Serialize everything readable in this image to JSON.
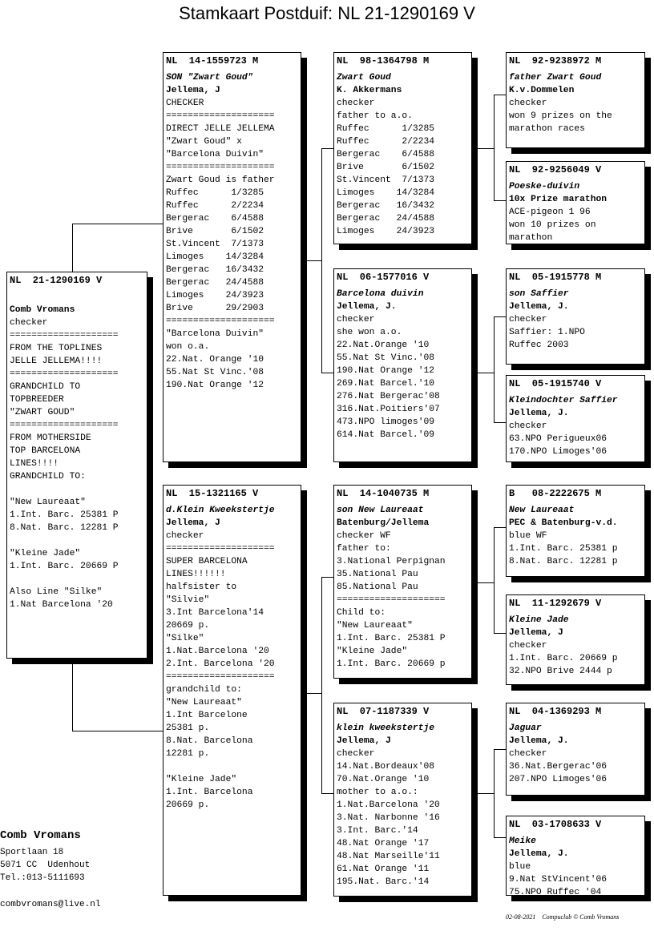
{
  "title": "Stamkaart Postduif: NL  21-1290169 V",
  "boxes": [
    {
      "key": "subject",
      "id": "NL  21-1290169 V",
      "name": "",
      "owner": "Comb Vromans",
      "lines": [
        "checker",
        "====================",
        "FROM THE TOPLINES",
        "JELLE JELLEMA!!!!",
        "====================",
        "GRANDCHILD TO",
        "TOPBREEDER",
        "\"ZWART GOUD\"",
        "====================",
        "FROM MOTHERSIDE",
        "TOP BARCELONA",
        "LINES!!!!",
        "GRANDCHILD TO:",
        "",
        "\"New Laureaat\"",
        "1.Int. Barc. 25381 P",
        "8.Nat. Barc. 12281 P",
        "",
        "\"Kleine Jade\"",
        "1.Int. Barc. 20669 P",
        "",
        "Also Line \"Silke\"",
        "1.Nat Barcelona '20"
      ]
    },
    {
      "key": "sire",
      "id": "NL  14-1559723 M",
      "name": "SON \"Zwart Goud\"",
      "owner": "Jellema, J",
      "lines": [
        "CHECKER",
        "====================",
        "DIRECT JELLE JELLEMA",
        "\"Zwart Goud\" x",
        "\"Barcelona Duivin\"",
        "====================",
        "Zwart Goud is father",
        "Ruffec      1/3285",
        "Ruffec      2/2234",
        "Bergerac    6/4588",
        "Brive       6/1502",
        "St.Vincent  7/1373",
        "Limoges    14/3284",
        "Bergerac   16/3432",
        "Bergerac   24/4588",
        "Limoges    24/3923",
        "Brive      29/2903",
        "====================",
        "\"Barcelona Duivin\"",
        "won o.a.",
        "22.Nat. Orange '10",
        "55.Nat St Vinc.'08",
        "190.Nat Orange '12"
      ]
    },
    {
      "key": "dam",
      "id": "NL  15-1321165 V",
      "name": "d.Klein Kweekstertje",
      "owner": "Jellema, J",
      "lines": [
        "checker",
        "====================",
        "SUPER BARCELONA",
        "LINES!!!!!!",
        "halfsister to",
        "\"Silvie\"",
        "3.Int Barcelona'14",
        "20669 p.",
        "\"Silke\"",
        "1.Nat.Barcelona '20",
        "2.Int. Barcelona '20",
        "====================",
        "grandchild to:",
        "\"New Laureaat\"",
        "1.Int Barcelone",
        "25381 p.",
        "8.Nat. Barcelona",
        "12281 p.",
        "",
        "\"Kleine Jade\"",
        "1.Int. Barcelona",
        "20669 p."
      ]
    },
    {
      "key": "ss",
      "id": "NL  98-1364798 M",
      "name": "Zwart Goud",
      "owner": "K. Akkermans",
      "lines": [
        "checker",
        "father to a.o.",
        "Ruffec      1/3285",
        "Ruffec      2/2234",
        "Bergerac    6/4588",
        "Brive       6/1502",
        "St.Vincent  7/1373",
        "Limoges    14/3284",
        "Bergerac   16/3432",
        "Bergerac   24/4588",
        "Limoges    24/3923"
      ]
    },
    {
      "key": "sd",
      "id": "NL  06-1577016 V",
      "name": "Barcelona duivin",
      "owner": "Jellema, J.",
      "lines": [
        "checker",
        "she won a.o.",
        "22.Nat.Orange '10",
        "55.Nat St Vinc.'08",
        "190.Nat Orange '12",
        "269.Nat Barcel.'10",
        "276.Nat Bergerac'08",
        "316.Nat.Poitiers'07",
        "473.NPO limoges'09",
        "614.Nat Barcel.'09"
      ]
    },
    {
      "key": "ds",
      "id": "NL  14-1040735 M",
      "name": "son New Laureaat",
      "owner": "Batenburg/Jellema",
      "lines": [
        "checker WF",
        "father to:",
        "3.National Perpignan",
        "35.National Pau",
        "85.National Pau",
        "====================",
        "Child to:",
        "\"New Laureaat\"",
        "1.Int. Barc. 25381 P",
        "\"Kleine Jade\"",
        "1.Int. Barc. 20669 p"
      ]
    },
    {
      "key": "dd",
      "id": "NL  07-1187339 V",
      "name": "klein kweekstertje",
      "owner": "Jellema, J",
      "lines": [
        "checker",
        "14.Nat.Bordeaux'08",
        "70.Nat.Orange '10",
        "mother to a.o.:",
        "1.Nat.Barcelona '20",
        "3.Nat. Narbonne '16",
        "3.Int. Barc.'14",
        "48.Nat Orange '17",
        "48.Nat Marseille'11",
        "61.Nat Orange '11",
        "195.Nat. Barc.'14"
      ]
    },
    {
      "key": "sss",
      "id": "NL  92-9238972 M",
      "name": "father Zwart Goud",
      "owner": "K.v.Dommelen",
      "lines": [
        "checker",
        "won 9 prizes on the",
        "marathon races"
      ]
    },
    {
      "key": "ssd",
      "id": "NL  92-9256049 V",
      "name": "Poeske-duivin",
      "owner": "10x Prize marathon",
      "lines": [
        "ACE-pigeon 1 96",
        "won 10 prizes on",
        "marathon"
      ]
    },
    {
      "key": "sds",
      "id": "NL  05-1915778 M",
      "name": "son Saffier",
      "owner": "Jellema, J.",
      "lines": [
        "checker",
        "Saffier: 1.NPO",
        "Ruffec 2003"
      ]
    },
    {
      "key": "sdd",
      "id": "NL  05-1915740 V",
      "name": "Kleindochter Saffier",
      "owner": "Jellema, J.",
      "lines": [
        "checker",
        "63.NPO Perigueux06",
        "170.NPO Limoges'06"
      ]
    },
    {
      "key": "dss",
      "id": "B   08-2222675 M",
      "name": "New Laureaat",
      "owner": "PEC & Batenburg-v.d.",
      "lines": [
        "blue WF",
        "1.Int. Barc. 25381 p",
        "8.Nat. Barc. 12281 p"
      ]
    },
    {
      "key": "dsd",
      "id": "NL  11-1292679 V",
      "name": "Kleine Jade",
      "owner": "Jellema, J",
      "lines": [
        "checker",
        "1.Int. Barc. 20669 p",
        "32.NPO Brive 2444 p"
      ]
    },
    {
      "key": "dds",
      "id": "NL  04-1369293 M",
      "name": "Jaguar",
      "owner": "Jellema, J.",
      "lines": [
        "checker",
        "36.Nat.Bergerac'06",
        "207.NPO Limoges'06"
      ]
    },
    {
      "key": "ddd",
      "id": "NL  03-1708633 V",
      "name": "Meike",
      "owner": "Jellema, J.",
      "lines": [
        "blue",
        "9.Nat StVincent'06",
        "75.NPO Ruffec '04"
      ]
    }
  ],
  "footer": {
    "name": "Comb Vromans",
    "address": [
      "Sportlaan 18",
      "5071 CC  Udenhout",
      "Tel.:013-5111693"
    ],
    "email": "combvromans@live.nl"
  },
  "credit": "02-08-2021    Compuclub © Comb Vromans"
}
